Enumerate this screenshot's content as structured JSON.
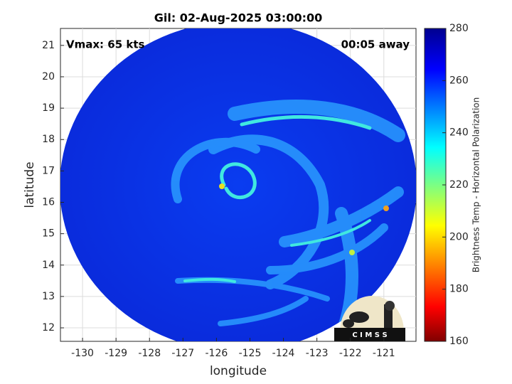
{
  "chart_data": {
    "type": "image",
    "title": "Gil: 02-Aug-2025 03:00:00",
    "annotations": [
      "Vmax: 65 kts",
      "00:05 away"
    ],
    "xlabel": "longitude",
    "ylabel": "latitude",
    "xlim": [
      -130.66,
      -120.04
    ],
    "ylim": [
      11.57,
      21.54
    ],
    "xticks": [
      -130,
      -129,
      -128,
      -127,
      -126,
      -125,
      -124,
      -123,
      -122,
      -121
    ],
    "yticks": [
      12,
      13,
      14,
      15,
      16,
      17,
      18,
      19,
      20,
      21
    ],
    "grid": true,
    "colorbar": {
      "label": "Brightness Temp - Horizontal Polarization",
      "lim": [
        160,
        280
      ],
      "ticks": [
        160,
        180,
        200,
        220,
        240,
        260,
        280
      ],
      "colormap": "jet"
    },
    "logo": "C I M S S"
  }
}
